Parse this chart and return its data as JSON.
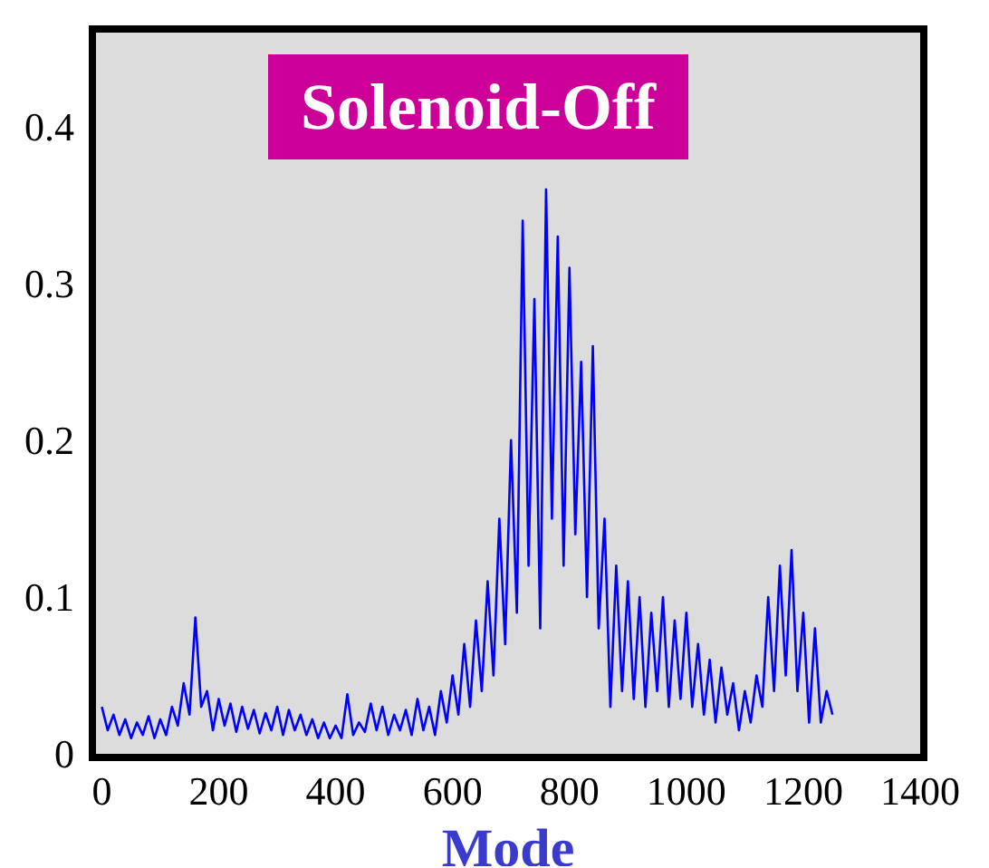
{
  "chart_data": {
    "type": "line",
    "title": "Solenoid-Off",
    "xlabel": "Mode",
    "x": [
      0,
      10,
      20,
      30,
      40,
      50,
      60,
      70,
      80,
      90,
      100,
      110,
      120,
      130,
      140,
      150,
      160,
      170,
      180,
      190,
      200,
      210,
      220,
      230,
      240,
      250,
      260,
      270,
      280,
      290,
      300,
      310,
      320,
      330,
      340,
      350,
      360,
      370,
      380,
      390,
      400,
      410,
      420,
      430,
      440,
      450,
      460,
      470,
      480,
      490,
      500,
      510,
      520,
      530,
      540,
      550,
      560,
      570,
      580,
      590,
      600,
      610,
      620,
      630,
      640,
      650,
      660,
      670,
      680,
      690,
      700,
      710,
      720,
      730,
      740,
      750,
      760,
      770,
      780,
      790,
      800,
      810,
      820,
      830,
      840,
      850,
      860,
      870,
      880,
      890,
      900,
      910,
      920,
      930,
      940,
      950,
      960,
      970,
      980,
      990,
      1000,
      1010,
      1020,
      1030,
      1040,
      1050,
      1060,
      1070,
      1080,
      1090,
      1100,
      1110,
      1120,
      1130,
      1140,
      1150,
      1160,
      1170,
      1180,
      1190,
      1200,
      1210,
      1220,
      1230,
      1240,
      1250
    ],
    "series": [
      {
        "color": "#0000ff",
        "values": [
          0.03,
          0.015,
          0.025,
          0.012,
          0.022,
          0.01,
          0.02,
          0.012,
          0.024,
          0.01,
          0.022,
          0.012,
          0.03,
          0.018,
          0.045,
          0.025,
          0.087,
          0.03,
          0.04,
          0.015,
          0.035,
          0.018,
          0.032,
          0.014,
          0.03,
          0.016,
          0.028,
          0.013,
          0.026,
          0.015,
          0.03,
          0.012,
          0.028,
          0.015,
          0.025,
          0.012,
          0.022,
          0.01,
          0.02,
          0.01,
          0.018,
          0.01,
          0.038,
          0.012,
          0.02,
          0.014,
          0.032,
          0.015,
          0.03,
          0.012,
          0.025,
          0.015,
          0.028,
          0.012,
          0.035,
          0.015,
          0.03,
          0.012,
          0.04,
          0.02,
          0.05,
          0.025,
          0.07,
          0.03,
          0.085,
          0.04,
          0.11,
          0.05,
          0.15,
          0.07,
          0.2,
          0.09,
          0.34,
          0.12,
          0.29,
          0.08,
          0.36,
          0.15,
          0.33,
          0.12,
          0.31,
          0.14,
          0.25,
          0.1,
          0.26,
          0.08,
          0.15,
          0.03,
          0.12,
          0.04,
          0.11,
          0.035,
          0.1,
          0.03,
          0.09,
          0.04,
          0.1,
          0.03,
          0.085,
          0.035,
          0.09,
          0.03,
          0.07,
          0.025,
          0.06,
          0.02,
          0.055,
          0.025,
          0.045,
          0.015,
          0.04,
          0.02,
          0.05,
          0.03,
          0.1,
          0.04,
          0.12,
          0.05,
          0.13,
          0.04,
          0.09,
          0.02,
          0.08,
          0.02,
          0.04,
          0.025
        ]
      }
    ],
    "xlim": [
      -10,
      1400
    ],
    "xticks": [
      0,
      200,
      400,
      600,
      800,
      1000,
      1200,
      1400
    ],
    "ylim": [
      0,
      0.46
    ],
    "yticks": [
      0,
      0.1,
      0.2,
      0.3,
      0.4
    ]
  }
}
